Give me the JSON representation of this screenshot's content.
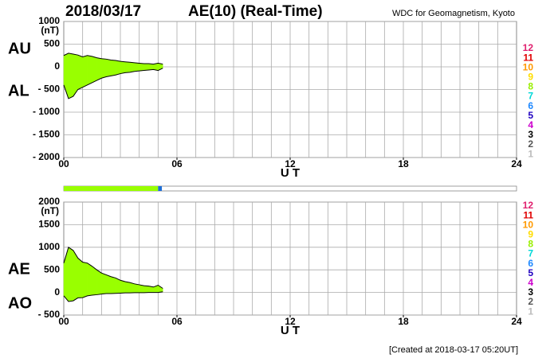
{
  "header": {
    "date": "2018/03/17",
    "title": "AE(10) (Real-Time)",
    "source": "WDC for Geomagnetism, Kyoto"
  },
  "footer": "[Created at 2018-03-17 05:20UT]",
  "station_legend": [
    {
      "label": "12",
      "color": "#e0206e"
    },
    {
      "label": "11",
      "color": "#e00000"
    },
    {
      "label": "10",
      "color": "#ff9900"
    },
    {
      "label": "9",
      "color": "#ffdd00"
    },
    {
      "label": "8",
      "color": "#99ee00"
    },
    {
      "label": "7",
      "color": "#00d8d8"
    },
    {
      "label": "6",
      "color": "#1e88ff"
    },
    {
      "label": "5",
      "color": "#2000c0"
    },
    {
      "label": "4",
      "color": "#cc00cc"
    },
    {
      "label": "3",
      "color": "#000000"
    },
    {
      "label": "2",
      "color": "#555555"
    },
    {
      "label": "1",
      "color": "#bbbbbb"
    }
  ],
  "status_bar": {
    "xlim": [
      0,
      24
    ],
    "segments": [
      {
        "start": 0,
        "end": 5.0,
        "color": "#99ff00"
      },
      {
        "start": 5.0,
        "end": 5.2,
        "color": "#1e6ed6"
      }
    ]
  },
  "chart_data": [
    {
      "type": "band",
      "y_unit": "(nT)",
      "x_label": "U T",
      "fill": "#99ff00",
      "grid": true,
      "minor_grid_step": 1,
      "xlim": [
        0,
        24
      ],
      "xticks": [
        {
          "value": 0,
          "label": "00"
        },
        {
          "value": 6,
          "label": "06"
        },
        12,
        18,
        24
      ],
      "ylim": [
        -2000,
        1000
      ],
      "yticks": [
        1000,
        500,
        0,
        {
          "value": -500,
          "label": "- 500"
        },
        {
          "value": -1000,
          "label": "- 1000"
        },
        {
          "value": -1500,
          "label": "- 1500"
        },
        {
          "value": -2000,
          "label": "- 2000"
        }
      ],
      "x": [
        0,
        0.25,
        0.5,
        0.75,
        1,
        1.25,
        1.5,
        1.75,
        2,
        2.25,
        2.5,
        2.75,
        3,
        3.25,
        3.5,
        3.75,
        4,
        4.25,
        4.5,
        4.75,
        5,
        5.25
      ],
      "series": [
        {
          "name": "AU",
          "color": "#000000",
          "values": [
            250,
            300,
            280,
            260,
            220,
            250,
            230,
            200,
            180,
            170,
            150,
            140,
            120,
            110,
            100,
            90,
            80,
            70,
            70,
            60,
            80,
            60
          ]
        },
        {
          "name": "AL",
          "color": "#000000",
          "values": [
            -400,
            -700,
            -650,
            -500,
            -450,
            -400,
            -350,
            -300,
            -250,
            -220,
            -200,
            -180,
            -150,
            -130,
            -120,
            -100,
            -90,
            -80,
            -70,
            -60,
            -80,
            -30
          ]
        }
      ]
    },
    {
      "type": "band",
      "y_unit": "(nT)",
      "x_label": "U T",
      "fill": "#99ff00",
      "grid": true,
      "minor_grid_step": 1,
      "xlim": [
        0,
        24
      ],
      "xticks": [
        {
          "value": 0,
          "label": "00"
        },
        {
          "value": 6,
          "label": "06"
        },
        12,
        18,
        24
      ],
      "ylim": [
        -500,
        2000
      ],
      "yticks": [
        2000,
        1500,
        1000,
        500,
        0,
        {
          "value": -500,
          "label": "- 500"
        }
      ],
      "x": [
        0,
        0.25,
        0.5,
        0.75,
        1,
        1.25,
        1.5,
        1.75,
        2,
        2.25,
        2.5,
        2.75,
        3,
        3.25,
        3.5,
        3.75,
        4,
        4.25,
        4.5,
        4.75,
        5,
        5.25
      ],
      "series": [
        {
          "name": "AE",
          "color": "#000000",
          "values": [
            650,
            1000,
            930,
            760,
            670,
            650,
            580,
            500,
            430,
            390,
            350,
            320,
            270,
            240,
            220,
            190,
            170,
            150,
            140,
            120,
            160,
            90
          ]
        },
        {
          "name": "AO",
          "color": "#000000",
          "values": [
            -75,
            -200,
            -185,
            -120,
            -115,
            -75,
            -60,
            -50,
            -35,
            -25,
            -25,
            -20,
            -15,
            -10,
            -10,
            -5,
            -5,
            -5,
            0,
            0,
            0,
            15
          ]
        }
      ]
    }
  ]
}
